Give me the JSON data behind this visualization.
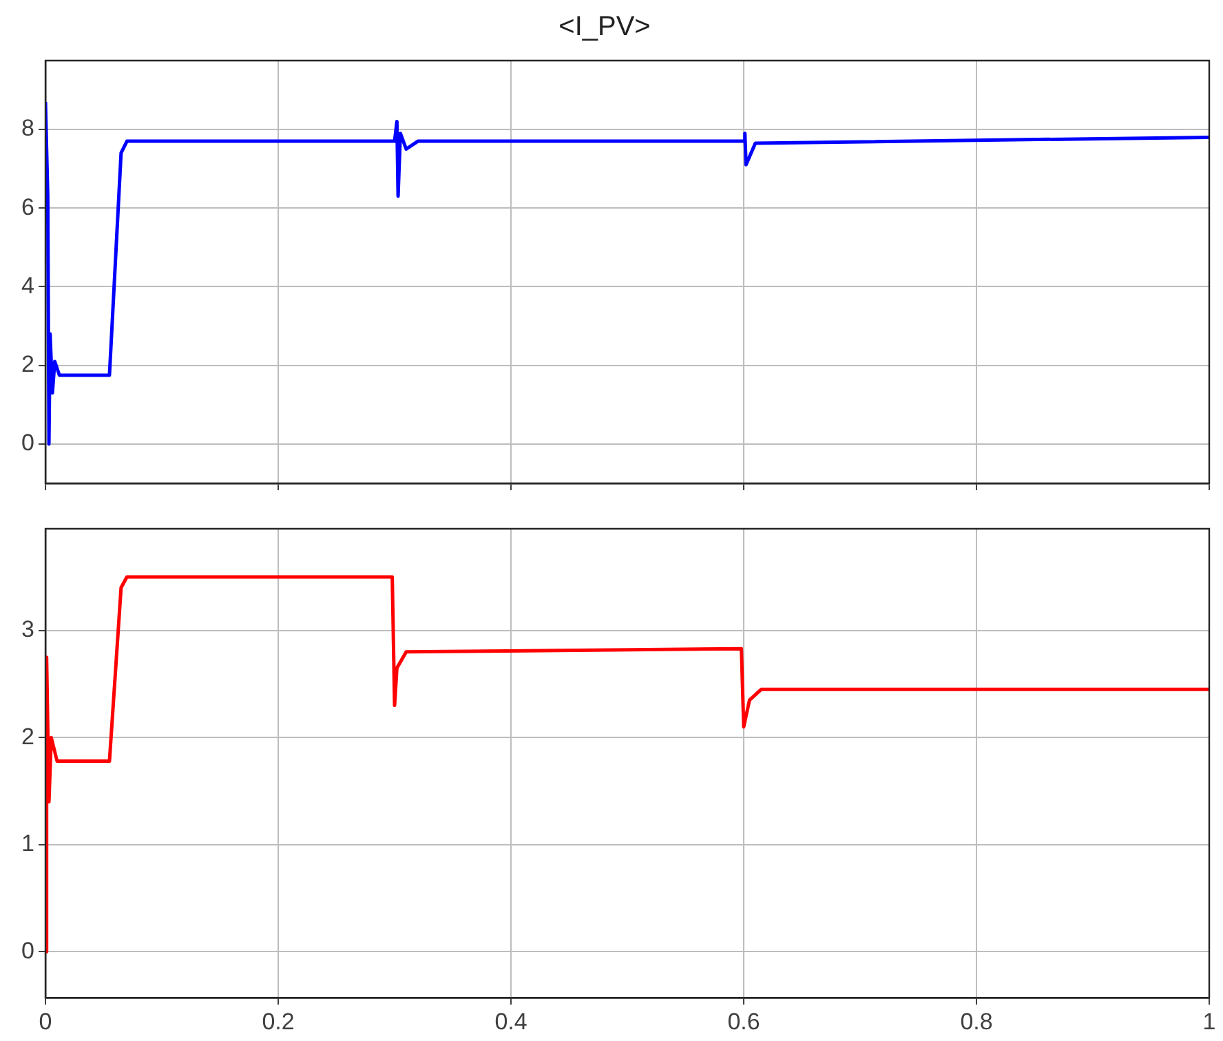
{
  "chart_data": [
    {
      "type": "line",
      "title": "<I_PV>",
      "x": [
        0,
        0.002,
        0.003,
        0.004,
        0.006,
        0.008,
        0.012,
        0.055,
        0.065,
        0.07,
        0.3,
        0.302,
        0.303,
        0.305,
        0.31,
        0.32,
        0.6,
        0.601,
        0.602,
        0.61,
        1
      ],
      "series": [
        {
          "color": "#0000ff",
          "values": [
            8.7,
            6.3,
            0,
            2.8,
            1.3,
            2.1,
            1.75,
            1.75,
            7.4,
            7.7,
            7.7,
            8.2,
            6.3,
            7.9,
            7.5,
            7.7,
            7.7,
            7.9,
            7.1,
            7.65,
            7.8
          ]
        }
      ],
      "xlim": [
        0,
        1
      ],
      "xticks": [
        0,
        0.2,
        0.4,
        0.6,
        0.8,
        1
      ],
      "ylim": [
        -1,
        9.75
      ],
      "yticks": [
        0,
        2,
        4,
        6,
        8
      ],
      "grid": true,
      "tick_labels": "y",
      "legend": false
    },
    {
      "type": "line",
      "x": [
        0,
        0.001,
        0.003,
        0.005,
        0.01,
        0.055,
        0.065,
        0.07,
        0.298,
        0.3,
        0.302,
        0.31,
        0.598,
        0.6,
        0.605,
        0.615,
        1
      ],
      "series": [
        {
          "color": "#ff0000",
          "values": [
            0,
            2.75,
            1.4,
            2.0,
            1.78,
            1.78,
            3.4,
            3.5,
            3.5,
            2.3,
            2.65,
            2.8,
            2.83,
            2.1,
            2.35,
            2.45,
            2.45
          ]
        }
      ],
      "xlim": [
        0,
        1
      ],
      "xticks": [
        0,
        0.2,
        0.4,
        0.6,
        0.8,
        1
      ],
      "ylim": [
        -0.43,
        3.95
      ],
      "yticks": [
        0,
        1,
        2,
        3
      ],
      "grid": true,
      "legend": false
    }
  ]
}
